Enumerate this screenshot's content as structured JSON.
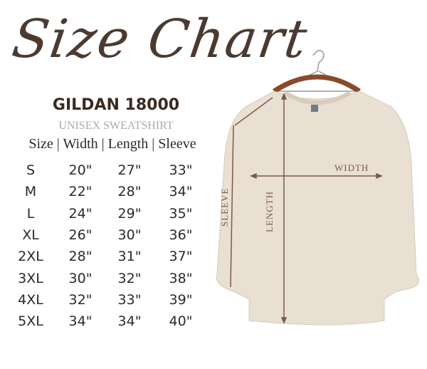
{
  "title": "Size Chart",
  "brand": "GILDAN 18000",
  "subtitle": "UNISEX SWEATSHIRT",
  "header": "Size | Width | Length | Sleeve",
  "columns": [
    "Size",
    "Width",
    "Length",
    "Sleeve"
  ],
  "rows": [
    [
      "S",
      "20\"",
      "27\"",
      "33\""
    ],
    [
      "M",
      "22\"",
      "28\"",
      "34\""
    ],
    [
      "L",
      "24\"",
      "29\"",
      "35\""
    ],
    [
      "XL",
      "26\"",
      "30\"",
      "36\""
    ],
    [
      "2XL",
      "28\"",
      "31\"",
      "37\""
    ],
    [
      "3XL",
      "30\"",
      "32\"",
      "38\""
    ],
    [
      "4XL",
      "32\"",
      "33\"",
      "39\""
    ],
    [
      "5XL",
      "34\"",
      "34\"",
      "40\""
    ]
  ],
  "diagram": {
    "width_label": "WIDTH",
    "length_label": "LENGTH",
    "sleeve_label": "SLEEVE"
  },
  "colors": {
    "title": "#4a3a30",
    "shirt": "#e9e0d3",
    "arrows": "#7a5a48"
  }
}
